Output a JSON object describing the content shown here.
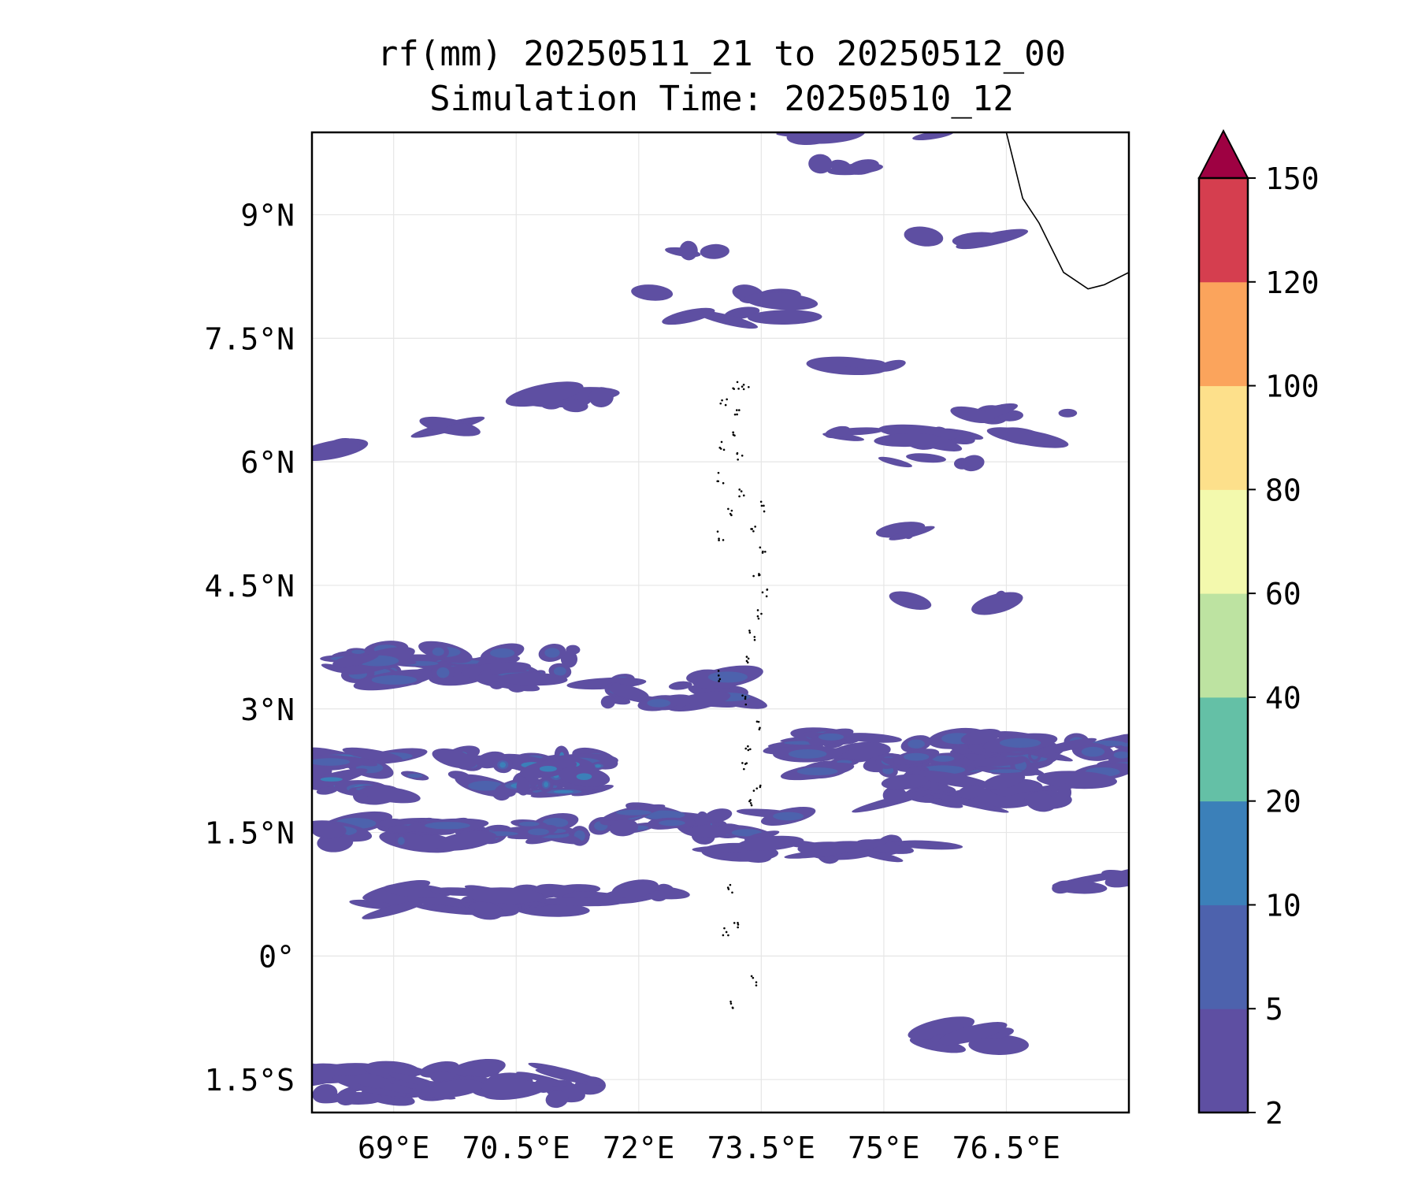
{
  "title": {
    "line1": "rf(mm) 20250511_21 to 20250512_00",
    "line2": "Simulation Time: 20250510_12"
  },
  "map": {
    "lon_range": [
      68.0,
      78.0
    ],
    "lat_range": [
      -1.9,
      10.0
    ],
    "lon_ticks": [
      {
        "value": 69.0,
        "label": "69°E"
      },
      {
        "value": 70.5,
        "label": "70.5°E"
      },
      {
        "value": 72.0,
        "label": "72°E"
      },
      {
        "value": 73.5,
        "label": "73.5°E"
      },
      {
        "value": 75.0,
        "label": "75°E"
      },
      {
        "value": 76.5,
        "label": "76.5°E"
      }
    ],
    "lat_ticks": [
      {
        "value": 9.0,
        "label": "9°N"
      },
      {
        "value": 7.5,
        "label": "7.5°N"
      },
      {
        "value": 6.0,
        "label": "6°N"
      },
      {
        "value": 4.5,
        "label": "4.5°N"
      },
      {
        "value": 3.0,
        "label": "3°N"
      },
      {
        "value": 1.5,
        "label": "1.5°N"
      },
      {
        "value": 0.0,
        "label": "0°"
      },
      {
        "value": -1.5,
        "label": "1.5°S"
      }
    ],
    "gridlines": true,
    "coastline": [
      [
        76.5,
        10.0
      ],
      [
        76.6,
        9.6
      ],
      [
        76.7,
        9.2
      ],
      [
        76.9,
        8.9
      ],
      [
        77.2,
        8.3
      ],
      [
        77.5,
        8.1
      ],
      [
        77.7,
        8.15
      ],
      [
        78.0,
        8.3
      ]
    ],
    "islands": [
      [
        73.18,
        6.95
      ],
      [
        73.3,
        6.9
      ],
      [
        73.05,
        6.7
      ],
      [
        73.2,
        6.6
      ],
      [
        73.0,
        6.2
      ],
      [
        73.15,
        6.3
      ],
      [
        73.25,
        6.05
      ],
      [
        73.0,
        5.8
      ],
      [
        73.25,
        5.6
      ],
      [
        73.1,
        5.4
      ],
      [
        73.5,
        5.45
      ],
      [
        73.4,
        5.2
      ],
      [
        73.0,
        5.1
      ],
      [
        73.5,
        4.9
      ],
      [
        73.45,
        4.6
      ],
      [
        73.55,
        4.4
      ],
      [
        73.5,
        4.15
      ],
      [
        73.4,
        3.9
      ],
      [
        73.35,
        3.6
      ],
      [
        73.0,
        3.4
      ],
      [
        73.3,
        3.1
      ],
      [
        73.45,
        2.8
      ],
      [
        73.35,
        2.55
      ],
      [
        73.3,
        2.3
      ],
      [
        73.45,
        2.05
      ],
      [
        73.35,
        1.85
      ],
      [
        73.1,
        0.8
      ],
      [
        73.2,
        0.4
      ],
      [
        73.05,
        0.3
      ],
      [
        73.15,
        -0.6
      ],
      [
        73.4,
        -0.3
      ]
    ]
  },
  "rain_cells": [
    {
      "lon": 71.3,
      "lat": 6.75,
      "w": 1.4,
      "h": 0.16,
      "l": 1
    },
    {
      "lon": 72.7,
      "lat": 8.55,
      "w": 0.6,
      "h": 0.1,
      "l": 1
    },
    {
      "lon": 72.9,
      "lat": 8.0,
      "w": 1.8,
      "h": 0.12,
      "l": 1
    },
    {
      "lon": 73.2,
      "lat": 7.75,
      "w": 1.2,
      "h": 0.12,
      "l": 1
    },
    {
      "lon": 70.0,
      "lat": 6.45,
      "w": 0.9,
      "h": 0.1,
      "l": 1
    },
    {
      "lon": 68.4,
      "lat": 6.15,
      "w": 0.3,
      "h": 0.1,
      "l": 1
    },
    {
      "lon": 75.6,
      "lat": 6.3,
      "w": 2.8,
      "h": 0.14,
      "l": 1
    },
    {
      "lon": 75.5,
      "lat": 6.0,
      "w": 1.2,
      "h": 0.1,
      "l": 1
    },
    {
      "lon": 76.7,
      "lat": 6.6,
      "w": 1.4,
      "h": 0.12,
      "l": 1
    },
    {
      "lon": 74.8,
      "lat": 10.0,
      "w": 1.8,
      "h": 0.12,
      "l": 1
    },
    {
      "lon": 74.4,
      "lat": 9.6,
      "w": 1.2,
      "h": 0.1,
      "l": 1
    },
    {
      "lon": 75.9,
      "lat": 8.7,
      "w": 1.0,
      "h": 0.1,
      "l": 1
    },
    {
      "lon": 74.7,
      "lat": 7.15,
      "w": 1.0,
      "h": 0.1,
      "l": 1
    },
    {
      "lon": 75.3,
      "lat": 5.15,
      "w": 0.5,
      "h": 0.1,
      "l": 1
    },
    {
      "lon": 75.9,
      "lat": 4.3,
      "w": 1.4,
      "h": 0.08,
      "l": 1
    },
    {
      "lon": 69.6,
      "lat": 3.5,
      "w": 3.2,
      "h": 0.45,
      "l": 2
    },
    {
      "lon": 72.4,
      "lat": 3.2,
      "w": 1.6,
      "h": 0.4,
      "l": 2
    },
    {
      "lon": 69.8,
      "lat": 2.2,
      "w": 3.6,
      "h": 0.5,
      "l": 3
    },
    {
      "lon": 70.2,
      "lat": 1.5,
      "w": 4.0,
      "h": 0.25,
      "l": 2
    },
    {
      "lon": 72.9,
      "lat": 1.6,
      "w": 2.2,
      "h": 0.3,
      "l": 2
    },
    {
      "lon": 74.3,
      "lat": 1.3,
      "w": 2.8,
      "h": 0.18,
      "l": 1
    },
    {
      "lon": 75.4,
      "lat": 2.45,
      "w": 3.0,
      "h": 0.45,
      "l": 2
    },
    {
      "lon": 77.2,
      "lat": 2.4,
      "w": 1.6,
      "h": 0.4,
      "l": 2
    },
    {
      "lon": 76.2,
      "lat": 2.0,
      "w": 2.4,
      "h": 0.3,
      "l": 1
    },
    {
      "lon": 70.1,
      "lat": 0.7,
      "w": 2.8,
      "h": 0.3,
      "l": 1
    },
    {
      "lon": 72.2,
      "lat": 0.8,
      "w": 1.2,
      "h": 0.15,
      "l": 1
    },
    {
      "lon": 77.4,
      "lat": 0.9,
      "w": 1.2,
      "h": 0.15,
      "l": 1
    },
    {
      "lon": 69.7,
      "lat": -1.55,
      "w": 3.6,
      "h": 0.4,
      "l": 1
    },
    {
      "lon": 76.1,
      "lat": -1.0,
      "w": 0.9,
      "h": 0.25,
      "l": 1
    }
  ],
  "colorbar": {
    "levels": [
      2,
      5,
      10,
      20,
      40,
      60,
      80,
      100,
      120,
      150
    ],
    "tick_labels": [
      "2",
      "5",
      "10",
      "20",
      "40",
      "60",
      "80",
      "100",
      "120",
      "150"
    ],
    "colors": [
      "#5e4fa2",
      "#4d62ad",
      "#3b80b9",
      "#64c0a6",
      "#bde3a1",
      "#f3f9ad",
      "#fde08b",
      "#fba45c",
      "#d53e4f"
    ],
    "extend_color": "#9e0142"
  }
}
